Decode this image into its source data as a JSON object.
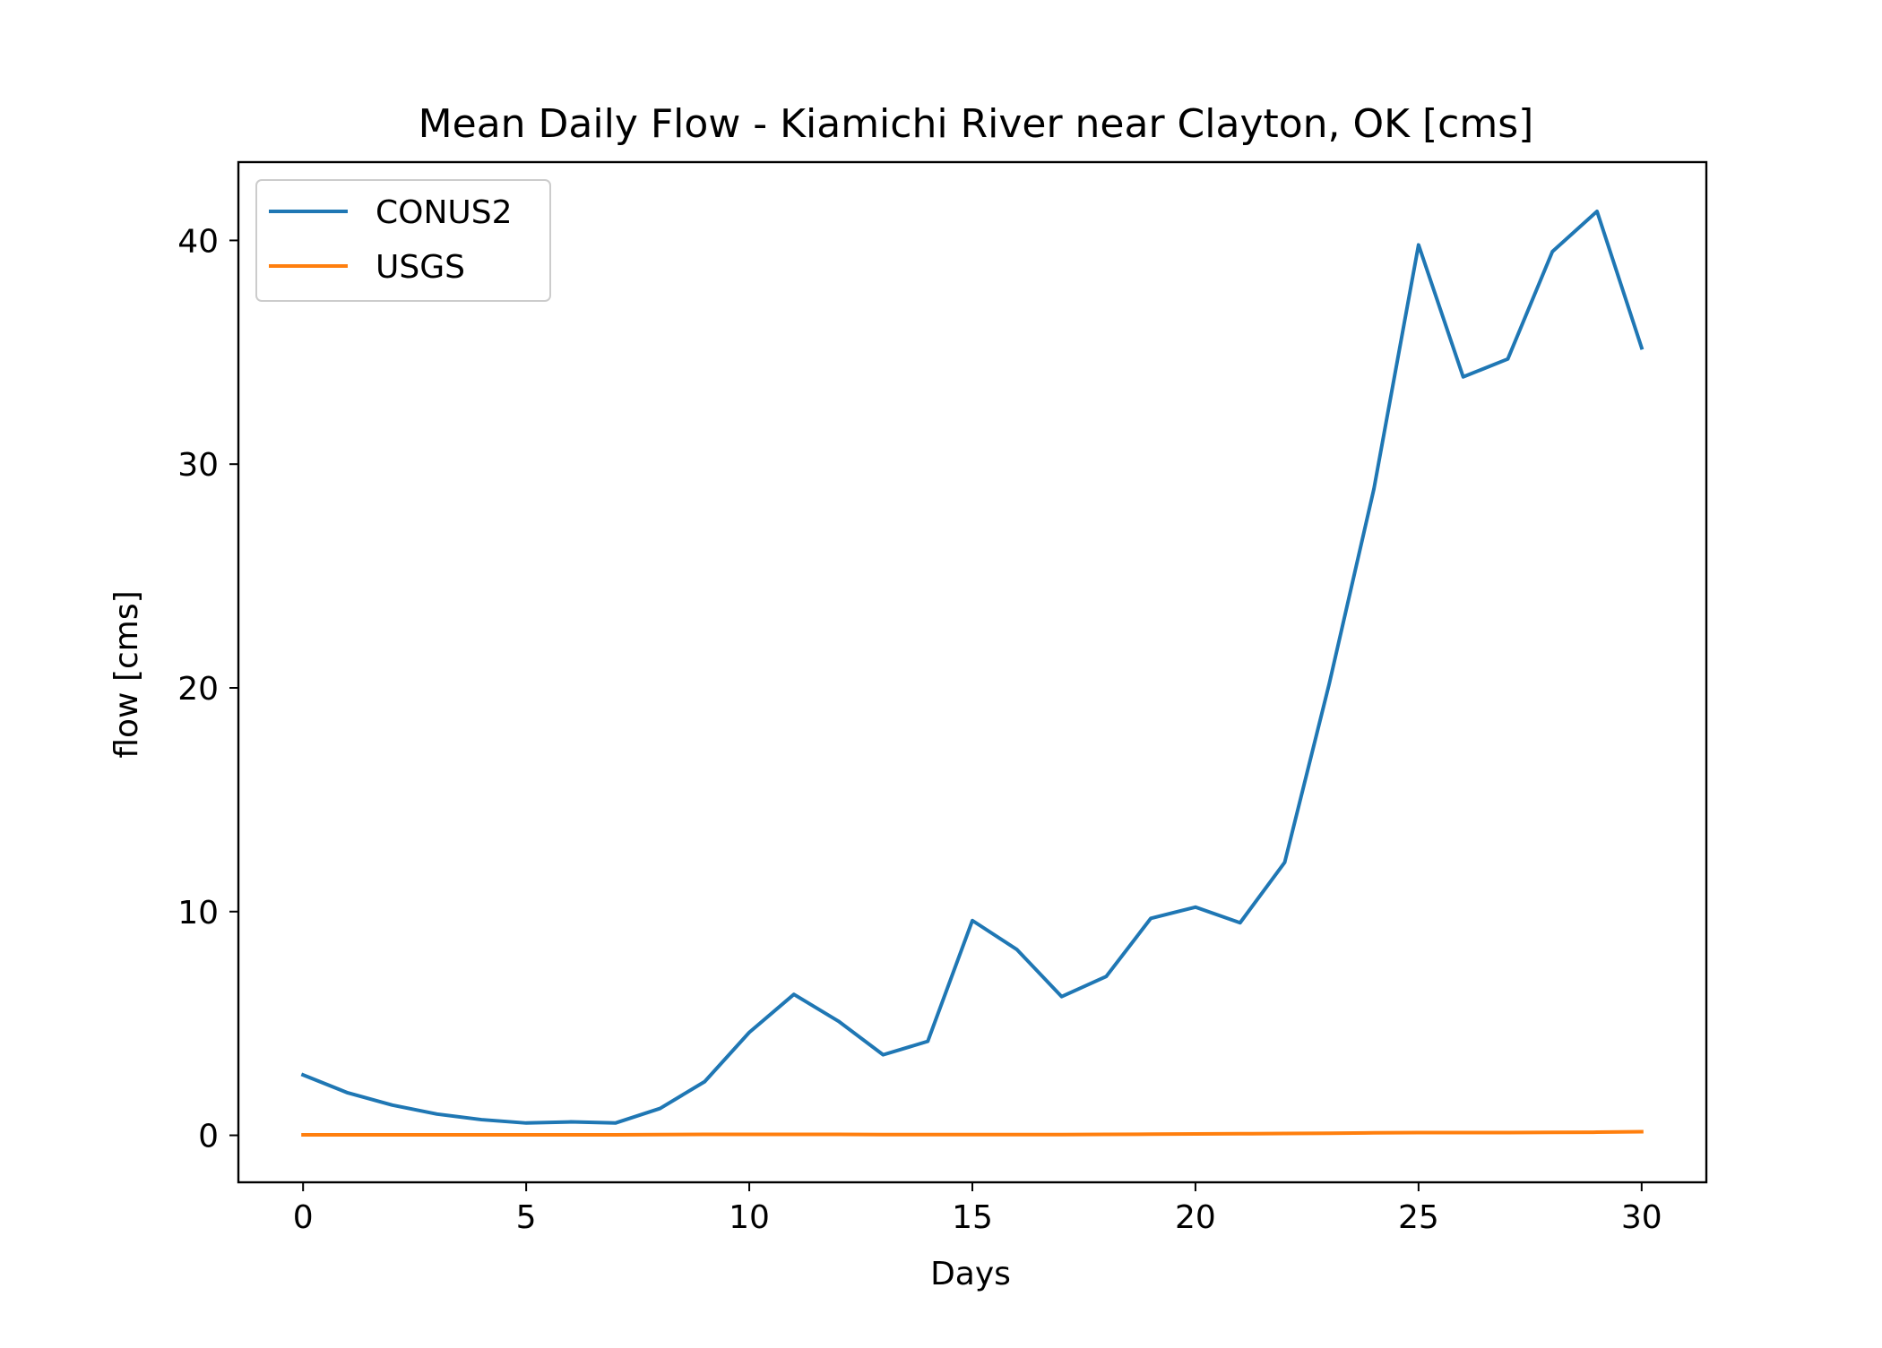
{
  "chart_data": {
    "type": "line",
    "title": "Mean Daily Flow - Kiamichi River near Clayton, OK [cms]",
    "xlabel": "Days",
    "ylabel": "flow [cms]",
    "xlim": [
      -1.45,
      31.45
    ],
    "ylim": [
      -2.1,
      43.5
    ],
    "xticks": [
      0,
      5,
      10,
      15,
      20,
      25,
      30
    ],
    "yticks": [
      0,
      10,
      20,
      30,
      40
    ],
    "grid": false,
    "legend_position": "upper-left",
    "x": [
      0,
      1,
      2,
      3,
      4,
      5,
      6,
      7,
      8,
      9,
      10,
      11,
      12,
      13,
      14,
      15,
      16,
      17,
      18,
      19,
      20,
      21,
      22,
      23,
      24,
      25,
      26,
      27,
      28,
      29,
      30
    ],
    "series": [
      {
        "name": "CONUS2",
        "color": "#1f77b4",
        "values": [
          2.7,
          1.9,
          1.35,
          0.95,
          0.7,
          0.55,
          0.6,
          0.55,
          1.2,
          2.4,
          4.6,
          6.3,
          5.1,
          3.6,
          4.2,
          9.6,
          8.3,
          6.2,
          7.1,
          9.7,
          10.2,
          9.5,
          12.2,
          20.2,
          28.9,
          39.8,
          33.9,
          34.7,
          39.5,
          41.3,
          35.2
        ]
      },
      {
        "name": "USGS",
        "color": "#ff7f0e",
        "values": [
          0.02,
          0.02,
          0.02,
          0.02,
          0.02,
          0.02,
          0.02,
          0.02,
          0.03,
          0.04,
          0.04,
          0.04,
          0.04,
          0.03,
          0.03,
          0.03,
          0.03,
          0.03,
          0.04,
          0.05,
          0.06,
          0.07,
          0.08,
          0.09,
          0.11,
          0.12,
          0.12,
          0.12,
          0.13,
          0.14,
          0.16
        ]
      }
    ]
  }
}
